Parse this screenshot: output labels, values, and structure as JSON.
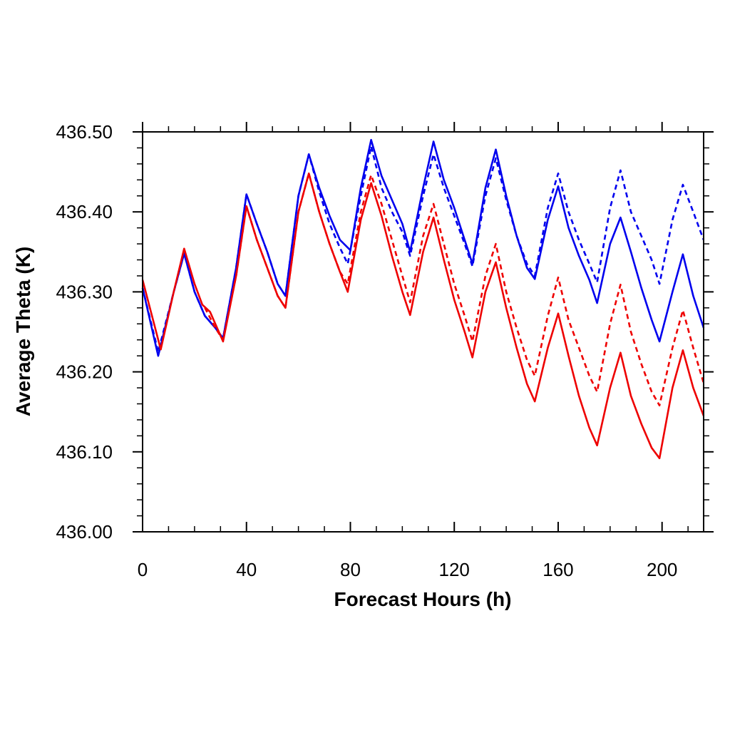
{
  "chart_data": {
    "type": "line",
    "title": "",
    "xlabel": "Forecast Hours (h)",
    "ylabel": "Average Theta (K)",
    "xlim": [
      0,
      216
    ],
    "ylim": [
      436.0,
      436.5
    ],
    "x_ticks": [
      0,
      40,
      80,
      120,
      160,
      200
    ],
    "x_tick_labels": [
      "0",
      "40",
      "80",
      "120",
      "160",
      "200"
    ],
    "y_ticks": [
      436.0,
      436.1,
      436.2,
      436.3,
      436.4,
      436.5
    ],
    "y_tick_labels": [
      "436.00",
      "436.10",
      "436.20",
      "436.30",
      "436.40",
      "436.50"
    ],
    "grid": false,
    "legend": "none",
    "colors": {
      "blue": "#0000ee",
      "red": "#ee0000"
    },
    "series": [
      {
        "color": "#0000ee",
        "style": "solid",
        "points": [
          [
            0,
            436.305
          ],
          [
            6,
            436.22
          ],
          [
            12,
            436.3
          ],
          [
            16,
            436.348
          ],
          [
            20,
            436.3
          ],
          [
            24,
            436.27
          ],
          [
            28,
            436.255
          ],
          [
            31,
            436.242
          ],
          [
            36,
            436.33
          ],
          [
            40,
            436.422
          ],
          [
            44,
            436.385
          ],
          [
            48,
            436.35
          ],
          [
            52,
            436.31
          ],
          [
            55,
            436.295
          ],
          [
            60,
            436.42
          ],
          [
            64,
            436.472
          ],
          [
            68,
            436.43
          ],
          [
            72,
            436.395
          ],
          [
            76,
            436.365
          ],
          [
            80,
            436.352
          ],
          [
            84,
            436.43
          ],
          [
            88,
            436.49
          ],
          [
            92,
            436.445
          ],
          [
            96,
            436.415
          ],
          [
            100,
            436.385
          ],
          [
            103,
            436.35
          ],
          [
            108,
            436.43
          ],
          [
            112,
            436.488
          ],
          [
            116,
            436.44
          ],
          [
            120,
            436.405
          ],
          [
            124,
            436.365
          ],
          [
            127,
            436.335
          ],
          [
            132,
            436.43
          ],
          [
            136,
            436.478
          ],
          [
            140,
            436.42
          ],
          [
            144,
            436.37
          ],
          [
            148,
            436.33
          ],
          [
            151,
            436.316
          ],
          [
            156,
            436.39
          ],
          [
            160,
            436.432
          ],
          [
            164,
            436.38
          ],
          [
            168,
            436.345
          ],
          [
            172,
            436.315
          ],
          [
            175,
            436.286
          ],
          [
            180,
            436.36
          ],
          [
            184,
            436.393
          ],
          [
            188,
            436.35
          ],
          [
            192,
            436.305
          ],
          [
            196,
            436.265
          ],
          [
            199,
            436.238
          ],
          [
            204,
            436.3
          ],
          [
            208,
            436.347
          ],
          [
            212,
            436.295
          ],
          [
            216,
            436.255
          ]
        ]
      },
      {
        "color": "#0000ee",
        "style": "dashed",
        "points": [
          [
            0,
            436.305
          ],
          [
            6,
            436.225
          ],
          [
            12,
            436.3
          ],
          [
            16,
            436.348
          ],
          [
            20,
            436.3
          ],
          [
            24,
            436.27
          ],
          [
            28,
            436.255
          ],
          [
            31,
            436.242
          ],
          [
            36,
            436.33
          ],
          [
            40,
            436.422
          ],
          [
            44,
            436.385
          ],
          [
            48,
            436.35
          ],
          [
            52,
            436.31
          ],
          [
            55,
            436.295
          ],
          [
            60,
            436.42
          ],
          [
            64,
            436.472
          ],
          [
            68,
            436.425
          ],
          [
            72,
            436.385
          ],
          [
            76,
            436.355
          ],
          [
            79,
            436.335
          ],
          [
            84,
            436.42
          ],
          [
            88,
            436.482
          ],
          [
            92,
            436.43
          ],
          [
            96,
            436.4
          ],
          [
            100,
            436.375
          ],
          [
            103,
            436.345
          ],
          [
            108,
            436.42
          ],
          [
            112,
            436.472
          ],
          [
            116,
            436.43
          ],
          [
            120,
            436.395
          ],
          [
            124,
            436.36
          ],
          [
            127,
            436.332
          ],
          [
            132,
            436.42
          ],
          [
            136,
            436.467
          ],
          [
            140,
            436.415
          ],
          [
            144,
            436.37
          ],
          [
            148,
            436.335
          ],
          [
            151,
            436.32
          ],
          [
            156,
            436.405
          ],
          [
            160,
            436.448
          ],
          [
            164,
            436.4
          ],
          [
            168,
            436.365
          ],
          [
            172,
            436.335
          ],
          [
            175,
            436.312
          ],
          [
            180,
            436.405
          ],
          [
            184,
            436.452
          ],
          [
            188,
            436.4
          ],
          [
            192,
            436.37
          ],
          [
            196,
            436.34
          ],
          [
            199,
            436.31
          ],
          [
            204,
            436.39
          ],
          [
            208,
            436.434
          ],
          [
            212,
            436.4
          ],
          [
            216,
            436.365
          ]
        ]
      },
      {
        "color": "#ee0000",
        "style": "solid",
        "points": [
          [
            0,
            436.315
          ],
          [
            7,
            436.228
          ],
          [
            12,
            436.3
          ],
          [
            16,
            436.354
          ],
          [
            20,
            436.31
          ],
          [
            23,
            436.284
          ],
          [
            26,
            436.275
          ],
          [
            31,
            436.238
          ],
          [
            36,
            436.32
          ],
          [
            40,
            436.407
          ],
          [
            44,
            436.365
          ],
          [
            48,
            436.33
          ],
          [
            52,
            436.295
          ],
          [
            55,
            436.28
          ],
          [
            60,
            436.4
          ],
          [
            64,
            436.448
          ],
          [
            68,
            436.4
          ],
          [
            72,
            436.36
          ],
          [
            76,
            436.325
          ],
          [
            79,
            436.3
          ],
          [
            84,
            436.39
          ],
          [
            88,
            436.436
          ],
          [
            92,
            436.395
          ],
          [
            96,
            436.345
          ],
          [
            100,
            436.3
          ],
          [
            103,
            436.271
          ],
          [
            108,
            436.35
          ],
          [
            112,
            436.393
          ],
          [
            116,
            436.34
          ],
          [
            120,
            436.29
          ],
          [
            124,
            436.25
          ],
          [
            127,
            436.218
          ],
          [
            132,
            436.3
          ],
          [
            136,
            436.337
          ],
          [
            140,
            436.28
          ],
          [
            144,
            436.23
          ],
          [
            148,
            436.185
          ],
          [
            151,
            436.163
          ],
          [
            156,
            436.23
          ],
          [
            160,
            436.273
          ],
          [
            164,
            436.22
          ],
          [
            168,
            436.17
          ],
          [
            172,
            436.13
          ],
          [
            175,
            436.108
          ],
          [
            180,
            436.18
          ],
          [
            184,
            436.224
          ],
          [
            188,
            436.17
          ],
          [
            192,
            436.135
          ],
          [
            196,
            436.105
          ],
          [
            199,
            436.092
          ],
          [
            204,
            436.18
          ],
          [
            208,
            436.227
          ],
          [
            212,
            436.18
          ],
          [
            216,
            436.145
          ]
        ]
      },
      {
        "color": "#ee0000",
        "style": "dashed",
        "points": [
          [
            24,
            436.28
          ],
          [
            28,
            436.255
          ],
          [
            31,
            436.24
          ],
          [
            36,
            436.32
          ],
          [
            40,
            436.407
          ],
          [
            44,
            436.365
          ],
          [
            48,
            436.33
          ],
          [
            52,
            436.295
          ],
          [
            55,
            436.28
          ],
          [
            60,
            436.4
          ],
          [
            64,
            436.448
          ],
          [
            68,
            436.4
          ],
          [
            72,
            436.36
          ],
          [
            76,
            436.325
          ],
          [
            79,
            436.31
          ],
          [
            84,
            436.4
          ],
          [
            88,
            436.446
          ],
          [
            92,
            436.41
          ],
          [
            96,
            436.365
          ],
          [
            100,
            436.32
          ],
          [
            103,
            436.287
          ],
          [
            108,
            436.37
          ],
          [
            112,
            436.41
          ],
          [
            116,
            436.36
          ],
          [
            120,
            436.31
          ],
          [
            124,
            436.27
          ],
          [
            127,
            436.238
          ],
          [
            132,
            436.32
          ],
          [
            136,
            436.36
          ],
          [
            140,
            436.3
          ],
          [
            144,
            436.255
          ],
          [
            148,
            436.215
          ],
          [
            151,
            436.195
          ],
          [
            156,
            436.27
          ],
          [
            160,
            436.318
          ],
          [
            164,
            436.265
          ],
          [
            168,
            436.23
          ],
          [
            172,
            436.195
          ],
          [
            175,
            436.175
          ],
          [
            180,
            436.26
          ],
          [
            184,
            436.309
          ],
          [
            188,
            436.25
          ],
          [
            192,
            436.21
          ],
          [
            196,
            436.175
          ],
          [
            199,
            436.158
          ],
          [
            204,
            436.23
          ],
          [
            208,
            436.277
          ],
          [
            212,
            436.23
          ],
          [
            216,
            436.186
          ]
        ]
      }
    ]
  }
}
